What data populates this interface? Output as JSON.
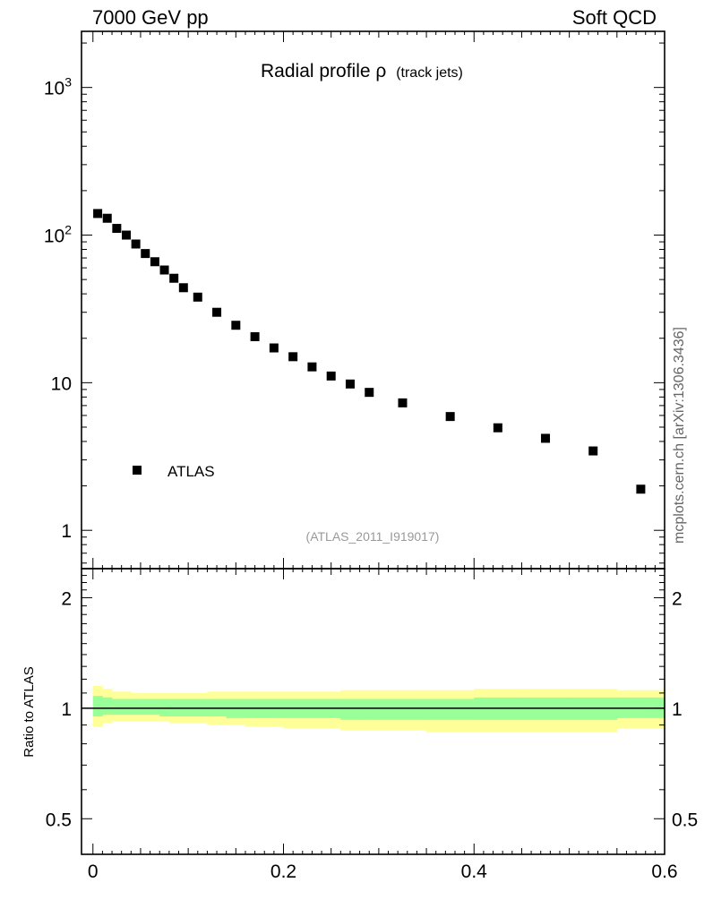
{
  "header": {
    "energy_label": "7000 GeV pp",
    "category_label": "Soft QCD"
  },
  "plot_title": {
    "main": "Radial profile ρ",
    "sub": "(track jets)"
  },
  "analysis_tag": "(ATLAS_2011_I919017)",
  "side_label": "mcplots.cern.ch [arXiv:1306.3436]",
  "legend": {
    "entry": "ATLAS",
    "placement": "lower-left"
  },
  "colors": {
    "band_outer": "#ffff99",
    "band_inner": "#99ff99",
    "marker": "#000000",
    "tag_text": "#999999",
    "side_text": "#666666"
  },
  "chart_data": [
    {
      "type": "scatter",
      "title": "Radial profile ρ (track jets)",
      "xlabel": "",
      "ylabel": "",
      "xlim": [
        -0.012,
        0.6
      ],
      "ylim": [
        0.55,
        2400
      ],
      "yscale": "log",
      "yticks": [
        {
          "value": 1,
          "label": "1"
        },
        {
          "value": 10,
          "label": "10"
        },
        {
          "value": 100,
          "label": "10",
          "exp": "2"
        },
        {
          "value": 1000,
          "label": "10",
          "exp": "3"
        }
      ],
      "series": [
        {
          "name": "ATLAS",
          "x": [
            0.005,
            0.015,
            0.025,
            0.035,
            0.045,
            0.055,
            0.065,
            0.075,
            0.085,
            0.095,
            0.11,
            0.13,
            0.15,
            0.17,
            0.19,
            0.21,
            0.23,
            0.25,
            0.27,
            0.29,
            0.325,
            0.375,
            0.425,
            0.475,
            0.525,
            0.575
          ],
          "y": [
            140,
            130,
            111,
            100,
            87,
            75,
            66,
            58,
            51,
            44,
            38,
            30,
            24.5,
            20.5,
            17.2,
            15.0,
            12.8,
            11.1,
            9.8,
            8.6,
            7.3,
            5.9,
            4.95,
            4.2,
            3.45,
            1.9
          ]
        }
      ],
      "grid": false,
      "legend": "lower-left"
    },
    {
      "type": "area",
      "title": "",
      "xlabel": "",
      "ylabel": "Ratio to ATLAS",
      "xlim": [
        -0.012,
        0.6
      ],
      "ylim": [
        0.4,
        2.4
      ],
      "yscale": "log",
      "xticks": [
        {
          "value": 0,
          "label": "0"
        },
        {
          "value": 0.2,
          "label": "0.2"
        },
        {
          "value": 0.4,
          "label": "0.4"
        },
        {
          "value": 0.6,
          "label": "0.6"
        }
      ],
      "yticks": [
        {
          "value": 0.5,
          "label": "0.5"
        },
        {
          "value": 1,
          "label": "1"
        },
        {
          "value": 2,
          "label": "2"
        }
      ],
      "reference_line": 1,
      "bins": [
        [
          0.0,
          0.01
        ],
        [
          0.01,
          0.02
        ],
        [
          0.02,
          0.03
        ],
        [
          0.03,
          0.04
        ],
        [
          0.04,
          0.05
        ],
        [
          0.05,
          0.06
        ],
        [
          0.06,
          0.07
        ],
        [
          0.07,
          0.08
        ],
        [
          0.08,
          0.09
        ],
        [
          0.09,
          0.1
        ],
        [
          0.1,
          0.12
        ],
        [
          0.12,
          0.14
        ],
        [
          0.14,
          0.16
        ],
        [
          0.16,
          0.18
        ],
        [
          0.18,
          0.2
        ],
        [
          0.2,
          0.22
        ],
        [
          0.22,
          0.24
        ],
        [
          0.24,
          0.26
        ],
        [
          0.26,
          0.28
        ],
        [
          0.28,
          0.3
        ],
        [
          0.3,
          0.35
        ],
        [
          0.35,
          0.4
        ],
        [
          0.4,
          0.45
        ],
        [
          0.45,
          0.5
        ],
        [
          0.5,
          0.55
        ],
        [
          0.55,
          0.6
        ]
      ],
      "series": [
        {
          "name": "",
          "lower": [
            0.89,
            0.91,
            0.92,
            0.92,
            0.92,
            0.92,
            0.92,
            0.92,
            0.91,
            0.91,
            0.91,
            0.9,
            0.9,
            0.89,
            0.89,
            0.88,
            0.88,
            0.88,
            0.87,
            0.87,
            0.87,
            0.86,
            0.86,
            0.86,
            0.86,
            0.88
          ],
          "upper": [
            1.15,
            1.13,
            1.11,
            1.11,
            1.1,
            1.1,
            1.1,
            1.1,
            1.1,
            1.1,
            1.1,
            1.11,
            1.11,
            1.11,
            1.11,
            1.11,
            1.11,
            1.11,
            1.12,
            1.12,
            1.12,
            1.12,
            1.13,
            1.13,
            1.13,
            1.12
          ]
        },
        {
          "name": "",
          "lower": [
            0.95,
            0.96,
            0.96,
            0.96,
            0.96,
            0.96,
            0.96,
            0.95,
            0.95,
            0.95,
            0.95,
            0.95,
            0.94,
            0.94,
            0.94,
            0.94,
            0.94,
            0.94,
            0.93,
            0.93,
            0.93,
            0.93,
            0.93,
            0.93,
            0.93,
            0.94
          ],
          "upper": [
            1.08,
            1.07,
            1.06,
            1.06,
            1.06,
            1.06,
            1.06,
            1.06,
            1.06,
            1.06,
            1.06,
            1.06,
            1.06,
            1.06,
            1.06,
            1.06,
            1.06,
            1.06,
            1.06,
            1.06,
            1.06,
            1.06,
            1.07,
            1.07,
            1.07,
            1.07
          ]
        }
      ],
      "grid": false
    }
  ]
}
